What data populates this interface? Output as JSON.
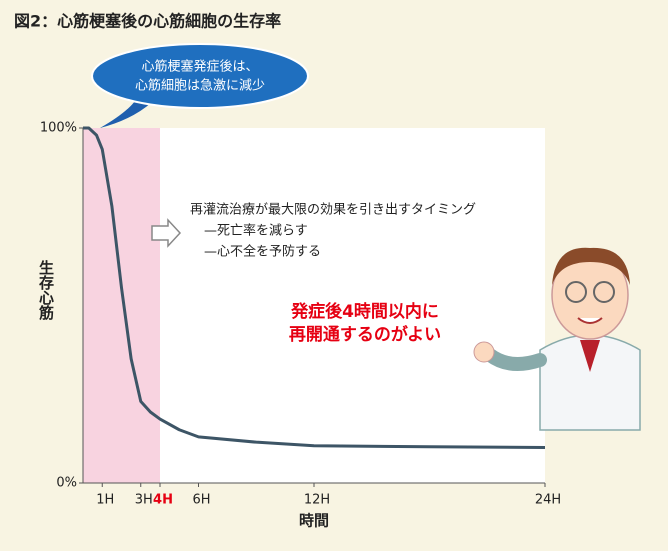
{
  "chart_data": {
    "type": "line",
    "title": "図2：心筋梗塞後の心筋細胞の生存率",
    "ylabel": "生存心筋",
    "xlabel": "時間",
    "x": [
      0,
      0.3,
      0.7,
      1,
      1.5,
      2,
      2.5,
      3,
      3.5,
      4,
      5,
      6,
      9,
      12,
      18,
      24
    ],
    "series": [
      {
        "name": "生存心筋",
        "color": "#3d5566",
        "values": [
          100,
          100,
          98,
          94,
          78,
          55,
          35,
          23,
          20,
          18,
          15,
          13,
          11.5,
          10.5,
          10.2,
          10
        ]
      }
    ],
    "xlim": [
      0,
      24
    ],
    "ylim": [
      0,
      100
    ],
    "xticks": [
      {
        "value": 1,
        "label": "1H"
      },
      {
        "value": 3,
        "label": "3H"
      },
      {
        "value": 4,
        "label": "4H",
        "color": "#e60012"
      },
      {
        "value": 6,
        "label": "6H"
      },
      {
        "value": 12,
        "label": "12H"
      },
      {
        "value": 24,
        "label": "24H"
      }
    ],
    "yticks": [
      {
        "value": 0,
        "label": "0%"
      },
      {
        "value": 100,
        "label": "100%"
      }
    ],
    "shaded_range": [
      0,
      4
    ],
    "shaded_color": "#f6c8d8",
    "bubble": [
      "心筋梗塞発症後は、",
      "心筋細胞は急激に減少"
    ],
    "annotation": [
      "再灌流治療が最大限の効果を引き出すタイミング",
      "—死亡率を減らす",
      "—心不全を予防する"
    ],
    "highlight": [
      "発症後4時間以内に",
      "再開通するのがよい"
    ],
    "highlight_color": "#e60012"
  }
}
